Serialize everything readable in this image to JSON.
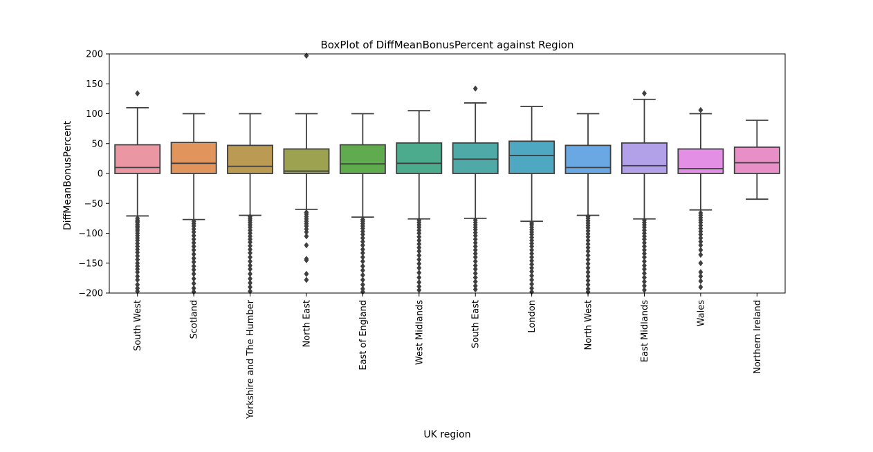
{
  "chart_data": {
    "type": "box",
    "title": "BoxPlot of DiffMeanBonusPercent against Region",
    "xlabel": "UK region",
    "ylabel": "DiffMeanBonusPercent",
    "ylim": [
      -200,
      200
    ],
    "yticks": [
      -200,
      -150,
      -100,
      -50,
      0,
      50,
      100,
      150,
      200
    ],
    "ytick_labels": [
      "−200",
      "−150",
      "−100",
      "−50",
      "0",
      "50",
      "100",
      "150",
      "200"
    ],
    "grid": false,
    "categories": [
      "South West",
      "Scotland",
      "Yorkshire and The Humber",
      "North East",
      "East of England",
      "West Midlands",
      "South East",
      "London",
      "North West",
      "East Midlands",
      "Wales",
      "Northern Ireland"
    ],
    "colors": [
      "#ea96a3",
      "#e1945c",
      "#bb9a53",
      "#9ca24f",
      "#60ab4d",
      "#4cab8d",
      "#4ea9a7",
      "#4fa8c1",
      "#69a8e2",
      "#b2a0e9",
      "#e38fe6",
      "#e88fc7"
    ],
    "edge_color": "#3f3f3f",
    "boxes": [
      {
        "whislo": -71,
        "q1": 0,
        "med": 10,
        "q3": 48,
        "whishi": 110,
        "fliers": [
          134,
          -75,
          -78,
          -80,
          -82,
          -85,
          -88,
          -90,
          -93,
          -96,
          -100,
          -104,
          -108,
          -112,
          -117,
          -122,
          -127,
          -132,
          -138,
          -144,
          -150,
          -155,
          -160,
          -165,
          -172,
          -178,
          -186,
          -192,
          -197
        ]
      },
      {
        "whislo": -77,
        "q1": 0,
        "med": 17,
        "q3": 52,
        "whishi": 100,
        "fliers": [
          -80,
          -84,
          -88,
          -93,
          -98,
          -104,
          -110,
          -116,
          -122,
          -128,
          -135,
          -142,
          -148,
          -155,
          -161,
          -168,
          -176,
          -184,
          -192,
          -198
        ]
      },
      {
        "whislo": -70,
        "q1": 0,
        "med": 12,
        "q3": 47,
        "whishi": 100,
        "fliers": [
          -72,
          -75,
          -78,
          -82,
          -86,
          -90,
          -95,
          -100,
          -105,
          -110,
          -115,
          -121,
          -127,
          -133,
          -140,
          -147,
          -154,
          -160,
          -168,
          -176,
          -183,
          -190,
          -197
        ]
      },
      {
        "whislo": -60,
        "q1": 0,
        "med": 4,
        "q3": 41,
        "whishi": 100,
        "fliers": [
          197,
          -65,
          -68,
          -72,
          -76,
          -80,
          -84,
          -88,
          -93,
          -98,
          -105,
          -120,
          -143,
          -145,
          -168,
          -178
        ]
      },
      {
        "whislo": -73,
        "q1": 0,
        "med": 16,
        "q3": 48,
        "whishi": 100,
        "fliers": [
          -77,
          -80,
          -84,
          -88,
          -92,
          -97,
          -102,
          -108,
          -114,
          -120,
          -127,
          -133,
          -140,
          -147,
          -155,
          -162,
          -170,
          -178,
          -186,
          -193,
          -198
        ]
      },
      {
        "whislo": -76,
        "q1": 0,
        "med": 17,
        "q3": 51,
        "whishi": 105,
        "fliers": [
          -78,
          -82,
          -86,
          -90,
          -95,
          -100,
          -106,
          -112,
          -118,
          -124,
          -130,
          -137,
          -144,
          -151,
          -158,
          -166,
          -174,
          -182,
          -189,
          -195
        ]
      },
      {
        "whislo": -75,
        "q1": 0,
        "med": 24,
        "q3": 51,
        "whishi": 118,
        "fliers": [
          142,
          -78,
          -82,
          -86,
          -90,
          -94,
          -99,
          -104,
          -110,
          -116,
          -122,
          -128,
          -134,
          -140,
          -147,
          -154,
          -160,
          -167,
          -174,
          -181,
          -188,
          -194
        ]
      },
      {
        "whislo": -80,
        "q1": 0,
        "med": 30,
        "q3": 54,
        "whishi": 112,
        "fliers": [
          -83,
          -86,
          -90,
          -94,
          -98,
          -102,
          -107,
          -112,
          -117,
          -122,
          -128,
          -134,
          -140,
          -146,
          -152,
          -158,
          -164,
          -171,
          -178,
          -185,
          -192,
          -198
        ]
      },
      {
        "whislo": -70,
        "q1": 0,
        "med": 10,
        "q3": 47,
        "whishi": 100,
        "fliers": [
          -72,
          -75,
          -79,
          -83,
          -87,
          -91,
          -96,
          -101,
          -106,
          -112,
          -118,
          -124,
          -130,
          -137,
          -144,
          -151,
          -158,
          -165,
          -172,
          -179,
          -186,
          -193,
          -198
        ]
      },
      {
        "whislo": -76,
        "q1": 0,
        "med": 13,
        "q3": 51,
        "whishi": 124,
        "fliers": [
          134,
          -78,
          -82,
          -86,
          -90,
          -95,
          -100,
          -105,
          -110,
          -116,
          -122,
          -128,
          -134,
          -140,
          -147,
          -154,
          -160,
          -167,
          -174,
          -181,
          -188,
          -195
        ]
      },
      {
        "whislo": -61,
        "q1": 0,
        "med": 8,
        "q3": 41,
        "whishi": 100,
        "fliers": [
          106,
          -66,
          -70,
          -74,
          -78,
          -82,
          -87,
          -92,
          -97,
          -102,
          -108,
          -114,
          -120,
          -128,
          -136,
          -150,
          -165,
          -172,
          -180,
          -190
        ]
      },
      {
        "whislo": -43,
        "q1": 0,
        "med": 18,
        "q3": 44,
        "whishi": 89,
        "fliers": []
      }
    ]
  }
}
